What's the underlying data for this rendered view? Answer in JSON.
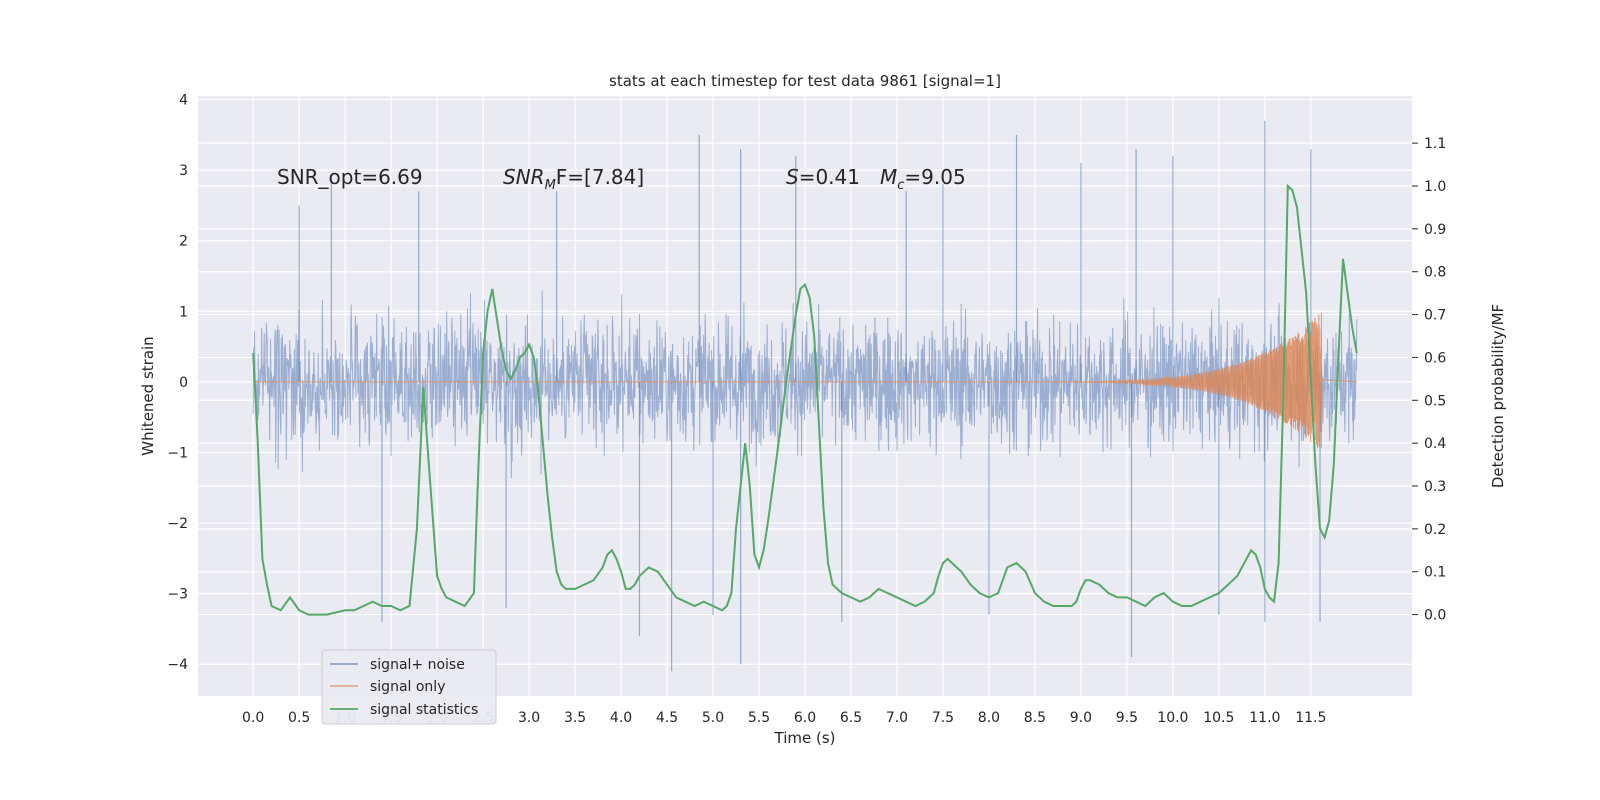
{
  "chart_data": {
    "type": "line",
    "title": "stats at each timestep for test data 9861 [signal=1]",
    "xlabel": "Time (s)",
    "ylabel": "Whitened strain",
    "y2label": "Detection probability/MF",
    "xlim": [
      -0.6,
      12.6
    ],
    "ylim": [
      -4.45,
      4.05
    ],
    "y2lim": [
      -0.19,
      1.21
    ],
    "x_ticks": [
      "0.0",
      "0.5",
      "1.0",
      "1.5",
      "2.0",
      "2.5",
      "3.0",
      "3.5",
      "4.0",
      "4.5",
      "5.0",
      "5.5",
      "6.0",
      "6.5",
      "7.0",
      "7.5",
      "8.0",
      "8.5",
      "9.0",
      "9.5",
      "10.0",
      "10.5",
      "11.0",
      "11.5"
    ],
    "y_ticks": [
      "4",
      "3",
      "2",
      "1",
      "0",
      "−1",
      "−2",
      "−3",
      "−4"
    ],
    "y2_ticks": [
      "1.1",
      "1.0",
      "0.9",
      "0.8",
      "0.7",
      "0.6",
      "0.5",
      "0.4",
      "0.3",
      "0.2",
      "0.1",
      "0.0"
    ],
    "grid": true,
    "legend_position": "lower-left",
    "annotations": {
      "snr_opt": "SNR_opt=6.69",
      "snr_mf_base": "SNR",
      "snr_mf_sub": "M",
      "snr_mf_rest": "F=[7.84]",
      "s_letter": "S",
      "s_value": "=0.41",
      "mc_letter": "M",
      "mc_sub": "c",
      "mc_value": "=9.05"
    },
    "series": [
      {
        "name": "signal+ noise",
        "color": "#4c72b0",
        "x_range": [
          0.0,
          12.0
        ],
        "envelope": {
          "typical_abs": 1.6,
          "max_abs": 3.6
        },
        "peaks_high": [
          [
            0.5,
            2.5
          ],
          [
            0.85,
            2.9
          ],
          [
            1.8,
            2.7
          ],
          [
            3.3,
            2.7
          ],
          [
            4.85,
            3.5
          ],
          [
            5.3,
            3.3
          ],
          [
            5.9,
            3.2
          ],
          [
            7.1,
            2.7
          ],
          [
            7.5,
            2.8
          ],
          [
            8.3,
            3.5
          ],
          [
            9.0,
            3.1
          ],
          [
            9.6,
            3.3
          ],
          [
            10.0,
            3.2
          ],
          [
            11.0,
            3.7
          ],
          [
            11.5,
            3.3
          ]
        ],
        "peaks_low": [
          [
            1.4,
            -3.4
          ],
          [
            2.75,
            -3.2
          ],
          [
            4.2,
            -3.6
          ],
          [
            4.55,
            -4.1
          ],
          [
            5.0,
            -3.3
          ],
          [
            5.3,
            -4.0
          ],
          [
            6.4,
            -3.4
          ],
          [
            8.0,
            -3.3
          ],
          [
            9.55,
            -3.9
          ],
          [
            10.5,
            -3.3
          ],
          [
            11.0,
            -3.4
          ],
          [
            11.6,
            -3.4
          ]
        ]
      },
      {
        "name": "signal only",
        "color": "#dd8452",
        "chirp": {
          "t_start": 7.4,
          "t_merge": 11.62,
          "amp_start": 0.0,
          "amp_merge": 1.0
        }
      },
      {
        "name": "signal statistics",
        "color": "#55a868",
        "axis": "right",
        "x": [
          0.0,
          0.05,
          0.1,
          0.15,
          0.2,
          0.3,
          0.4,
          0.5,
          0.6,
          0.8,
          1.0,
          1.1,
          1.2,
          1.3,
          1.4,
          1.5,
          1.6,
          1.7,
          1.78,
          1.85,
          1.9,
          2.0,
          2.05,
          2.1,
          2.2,
          2.3,
          2.4,
          2.45,
          2.5,
          2.55,
          2.6,
          2.65,
          2.7,
          2.75,
          2.8,
          2.85,
          2.9,
          2.95,
          3.0,
          3.05,
          3.1,
          3.15,
          3.2,
          3.25,
          3.3,
          3.35,
          3.4,
          3.5,
          3.6,
          3.7,
          3.8,
          3.85,
          3.9,
          3.95,
          4.0,
          4.05,
          4.1,
          4.15,
          4.2,
          4.3,
          4.4,
          4.5,
          4.6,
          4.7,
          4.8,
          4.9,
          5.0,
          5.1,
          5.15,
          5.2,
          5.25,
          5.3,
          5.35,
          5.4,
          5.45,
          5.5,
          5.55,
          5.6,
          5.7,
          5.8,
          5.9,
          5.95,
          6.0,
          6.05,
          6.1,
          6.15,
          6.2,
          6.25,
          6.3,
          6.35,
          6.4,
          6.5,
          6.6,
          6.7,
          6.8,
          6.9,
          7.0,
          7.1,
          7.2,
          7.3,
          7.4,
          7.45,
          7.5,
          7.55,
          7.6,
          7.7,
          7.8,
          7.9,
          8.0,
          8.1,
          8.15,
          8.2,
          8.3,
          8.4,
          8.5,
          8.6,
          8.7,
          8.8,
          8.9,
          8.95,
          9.0,
          9.05,
          9.1,
          9.2,
          9.3,
          9.4,
          9.5,
          9.6,
          9.7,
          9.8,
          9.9,
          10.0,
          10.1,
          10.2,
          10.3,
          10.4,
          10.5,
          10.6,
          10.65,
          10.7,
          10.75,
          10.8,
          10.85,
          10.9,
          10.95,
          11.0,
          11.05,
          11.1,
          11.15,
          11.2,
          11.25,
          11.3,
          11.35,
          11.4,
          11.45,
          11.5,
          11.55,
          11.6,
          11.65,
          11.7,
          11.75,
          11.8,
          11.85,
          11.9,
          11.95,
          12.0
        ],
        "values": [
          0.61,
          0.4,
          0.13,
          0.07,
          0.02,
          0.01,
          0.04,
          0.01,
          0.0,
          0.0,
          0.01,
          0.01,
          0.02,
          0.03,
          0.02,
          0.02,
          0.01,
          0.02,
          0.2,
          0.53,
          0.38,
          0.09,
          0.06,
          0.04,
          0.03,
          0.02,
          0.05,
          0.35,
          0.61,
          0.71,
          0.76,
          0.69,
          0.62,
          0.57,
          0.55,
          0.57,
          0.6,
          0.61,
          0.63,
          0.6,
          0.52,
          0.4,
          0.28,
          0.18,
          0.1,
          0.07,
          0.06,
          0.06,
          0.07,
          0.08,
          0.11,
          0.14,
          0.15,
          0.13,
          0.1,
          0.06,
          0.06,
          0.07,
          0.09,
          0.11,
          0.1,
          0.07,
          0.04,
          0.03,
          0.02,
          0.03,
          0.02,
          0.01,
          0.02,
          0.05,
          0.2,
          0.3,
          0.4,
          0.3,
          0.14,
          0.11,
          0.15,
          0.22,
          0.38,
          0.55,
          0.7,
          0.76,
          0.77,
          0.74,
          0.65,
          0.45,
          0.25,
          0.12,
          0.07,
          0.06,
          0.05,
          0.04,
          0.03,
          0.04,
          0.06,
          0.05,
          0.04,
          0.03,
          0.02,
          0.03,
          0.05,
          0.09,
          0.12,
          0.13,
          0.12,
          0.1,
          0.07,
          0.05,
          0.04,
          0.05,
          0.08,
          0.11,
          0.12,
          0.1,
          0.05,
          0.03,
          0.02,
          0.02,
          0.02,
          0.03,
          0.06,
          0.08,
          0.08,
          0.07,
          0.05,
          0.04,
          0.04,
          0.03,
          0.02,
          0.04,
          0.05,
          0.03,
          0.02,
          0.02,
          0.03,
          0.04,
          0.05,
          0.07,
          0.08,
          0.09,
          0.11,
          0.13,
          0.15,
          0.14,
          0.11,
          0.06,
          0.04,
          0.03,
          0.12,
          0.5,
          1.0,
          0.99,
          0.95,
          0.85,
          0.75,
          0.55,
          0.35,
          0.2,
          0.18,
          0.22,
          0.35,
          0.6,
          0.83,
          0.75,
          0.67,
          0.61
        ]
      }
    ]
  }
}
